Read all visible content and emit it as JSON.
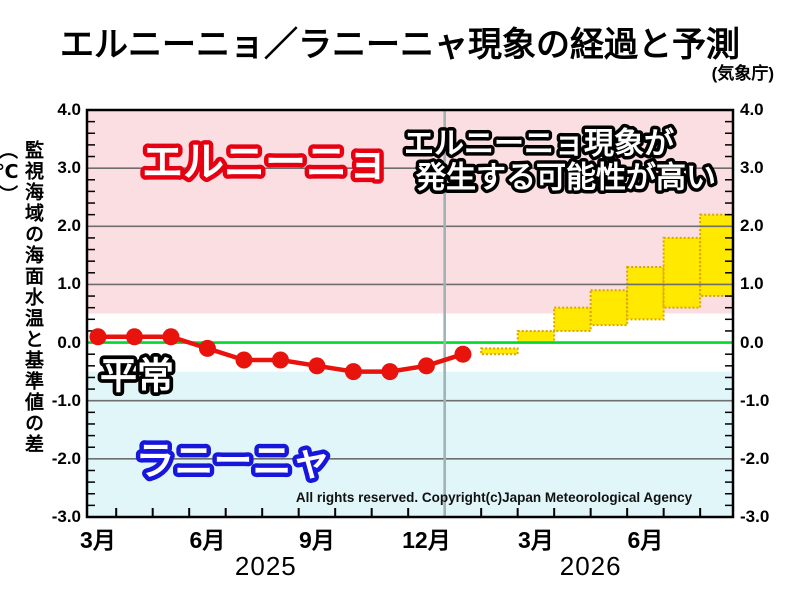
{
  "page": {
    "title": "エルニーニョ／ラニーニャ現象の経過と予測",
    "source": "(気象庁)"
  },
  "chart_data": {
    "type": "line",
    "title": "エルニーニョ／ラニーニャ現象の経過と予測",
    "source": "気象庁 (Japan Meteorological Agency)",
    "ylabel": "監視海域の海面水温と基準値の差（℃）",
    "ylim": [
      -3.0,
      4.0
    ],
    "y_tick_labels": [
      "4.0",
      "3.0",
      "2.0",
      "1.0",
      "0.0",
      "-1.0",
      "-2.0",
      "-3.0"
    ],
    "y_gridlines": [
      3.0,
      2.0,
      1.0,
      -1.0,
      -2.0
    ],
    "y_minor_tick_step": 0.2,
    "zero_line_value": 0.0,
    "x_range_index": [
      -0.3,
      17.4
    ],
    "x_month_tick_boundaries": "every month boundary",
    "x_axis_labels": [
      {
        "label": "3月",
        "index": 0
      },
      {
        "label": "6月",
        "index": 3
      },
      {
        "label": "9月",
        "index": 6
      },
      {
        "label": "12月",
        "index": 9
      },
      {
        "label": "3月",
        "index": 12
      },
      {
        "label": "6月",
        "index": 15
      }
    ],
    "year_labels": [
      {
        "label": "2025",
        "index": 4.6
      },
      {
        "label": "2026",
        "index": 13.5
      }
    ],
    "year_boundary_index": 9.5,
    "regions": [
      {
        "id": "elnino",
        "label": "エルニーニョ",
        "from": 0.5,
        "to": 4.0,
        "color": "#fbdee2"
      },
      {
        "id": "normal",
        "label": "平常",
        "from": -0.5,
        "to": 0.5,
        "color": "#ffffff"
      },
      {
        "id": "lanina",
        "label": "ラニーニャ",
        "from": -3.0,
        "to": -0.5,
        "color": "#e1f6f8"
      }
    ],
    "observed": {
      "start_index": 0,
      "start_month_label": "3月",
      "values": [
        0.1,
        0.1,
        0.1,
        -0.1,
        -0.3,
        -0.3,
        -0.4,
        -0.5,
        -0.5,
        -0.4,
        -0.2
      ]
    },
    "forecast_boxes": [
      {
        "index": 11,
        "min": -0.2,
        "max": -0.1
      },
      {
        "index": 12,
        "min": 0.0,
        "max": 0.2
      },
      {
        "index": 13,
        "min": 0.2,
        "max": 0.6
      },
      {
        "index": 14,
        "min": 0.3,
        "max": 0.9
      },
      {
        "index": 15,
        "min": 0.4,
        "max": 1.3
      },
      {
        "index": 16,
        "min": 0.6,
        "max": 1.8
      },
      {
        "index": 17,
        "min": 0.8,
        "max": 2.2
      }
    ],
    "annotation_lines": [
      "エルニーニョ現象が",
      "発生する可能性が高い"
    ],
    "copyright": "All rights reserved. Copyright(c)Japan Meteorological Agency",
    "region_label_styles": {
      "elnino": {
        "fill": "#ffffff",
        "stroke": "#e60012"
      },
      "normal": {
        "fill": "#ffffff",
        "stroke": "#000000"
      },
      "lanina": {
        "fill": "#ffffff",
        "stroke": "#1616dd"
      }
    },
    "colors": {
      "observed_line": "#e8130d",
      "zero_line": "#00d82a",
      "grid": "#6e6e6e",
      "year_boundary_line": "#9fb3b6",
      "forecast_fill": "#ffe900",
      "forecast_border": "#dca400",
      "border": "#000000",
      "annotation_fill": "#ffffff",
      "annotation_stroke": "#000000"
    },
    "legend_position": "none",
    "grid": true
  }
}
